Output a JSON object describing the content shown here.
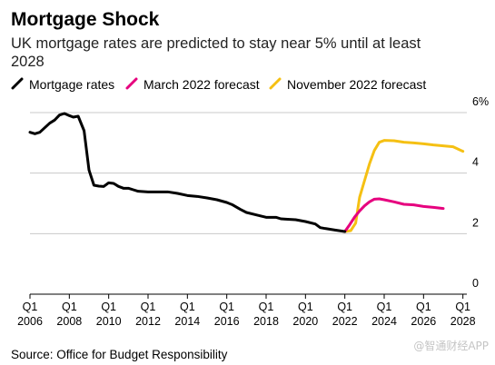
{
  "title": "Mortgage Shock",
  "subtitle_lines": [
    "UK mortgage rates are predicted to stay near 5% until at least",
    "2028"
  ],
  "source": "Source: Office for Budget Responsibility",
  "watermark": "@智通财经APP",
  "colors": {
    "mortgage": "#000000",
    "march": "#e6007e",
    "november": "#f5c013",
    "grid": "#c8c8c8"
  },
  "chart_data": {
    "type": "line",
    "x_unit": "year",
    "xlim": [
      2006,
      2028.2
    ],
    "ylim": [
      0,
      6
    ],
    "y_ticks": [
      {
        "value": 6,
        "label": "6%"
      },
      {
        "value": 4,
        "label": "4"
      },
      {
        "value": 2,
        "label": "2"
      },
      {
        "value": 0,
        "label": "0"
      }
    ],
    "x_ticks": [
      {
        "value": 2006,
        "quarter": "Q1",
        "year": "2006"
      },
      {
        "value": 2008,
        "quarter": "Q1",
        "year": "2008"
      },
      {
        "value": 2010,
        "quarter": "Q1",
        "year": "2010"
      },
      {
        "value": 2012,
        "quarter": "Q1",
        "year": "2012"
      },
      {
        "value": 2014,
        "quarter": "Q1",
        "year": "2014"
      },
      {
        "value": 2016,
        "quarter": "Q1",
        "year": "2016"
      },
      {
        "value": 2018,
        "quarter": "Q1",
        "year": "2018"
      },
      {
        "value": 2020,
        "quarter": "Q1",
        "year": "2020"
      },
      {
        "value": 2022,
        "quarter": "Q1",
        "year": "2022"
      },
      {
        "value": 2024,
        "quarter": "Q1",
        "year": "2024"
      },
      {
        "value": 2026,
        "quarter": "Q1",
        "year": "2026"
      },
      {
        "value": 2028,
        "quarter": "Q1",
        "year": "2028"
      }
    ],
    "grid": true,
    "legend_position": "top-left",
    "series": [
      {
        "name": "Mortgage rates",
        "color": "#000000",
        "points": [
          [
            2006.0,
            5.35
          ],
          [
            2006.25,
            5.3
          ],
          [
            2006.5,
            5.35
          ],
          [
            2006.75,
            5.5
          ],
          [
            2007.0,
            5.65
          ],
          [
            2007.25,
            5.75
          ],
          [
            2007.5,
            5.92
          ],
          [
            2007.75,
            5.97
          ],
          [
            2008.0,
            5.9
          ],
          [
            2008.2,
            5.85
          ],
          [
            2008.45,
            5.88
          ],
          [
            2008.75,
            5.4
          ],
          [
            2009.0,
            4.1
          ],
          [
            2009.25,
            3.6
          ],
          [
            2009.5,
            3.57
          ],
          [
            2009.75,
            3.56
          ],
          [
            2010.0,
            3.68
          ],
          [
            2010.25,
            3.66
          ],
          [
            2010.5,
            3.56
          ],
          [
            2010.75,
            3.5
          ],
          [
            2011.0,
            3.5
          ],
          [
            2011.25,
            3.45
          ],
          [
            2011.5,
            3.4
          ],
          [
            2012.0,
            3.38
          ],
          [
            2012.5,
            3.38
          ],
          [
            2013.0,
            3.38
          ],
          [
            2013.5,
            3.33
          ],
          [
            2014.0,
            3.26
          ],
          [
            2014.5,
            3.23
          ],
          [
            2015.0,
            3.18
          ],
          [
            2015.5,
            3.12
          ],
          [
            2016.0,
            3.03
          ],
          [
            2016.3,
            2.95
          ],
          [
            2016.7,
            2.8
          ],
          [
            2017.0,
            2.7
          ],
          [
            2017.5,
            2.62
          ],
          [
            2018.0,
            2.54
          ],
          [
            2018.5,
            2.54
          ],
          [
            2018.75,
            2.49
          ],
          [
            2019.0,
            2.48
          ],
          [
            2019.5,
            2.46
          ],
          [
            2020.0,
            2.4
          ],
          [
            2020.5,
            2.32
          ],
          [
            2020.75,
            2.2
          ],
          [
            2021.0,
            2.17
          ],
          [
            2021.5,
            2.12
          ],
          [
            2022.0,
            2.07
          ]
        ]
      },
      {
        "name": "March 2022 forecast",
        "color": "#e6007e",
        "points": [
          [
            2022.0,
            2.07
          ],
          [
            2022.25,
            2.3
          ],
          [
            2022.5,
            2.55
          ],
          [
            2022.75,
            2.75
          ],
          [
            2023.0,
            2.92
          ],
          [
            2023.25,
            3.05
          ],
          [
            2023.5,
            3.14
          ],
          [
            2023.75,
            3.15
          ],
          [
            2024.0,
            3.12
          ],
          [
            2024.5,
            3.05
          ],
          [
            2025.0,
            2.97
          ],
          [
            2025.5,
            2.95
          ],
          [
            2026.0,
            2.9
          ],
          [
            2026.5,
            2.87
          ],
          [
            2027.0,
            2.83
          ]
        ]
      },
      {
        "name": "November 2022 forecast",
        "color": "#f5c013",
        "points": [
          [
            2022.0,
            2.07
          ],
          [
            2022.3,
            2.1
          ],
          [
            2022.55,
            2.35
          ],
          [
            2022.75,
            3.2
          ],
          [
            2023.0,
            3.75
          ],
          [
            2023.25,
            4.3
          ],
          [
            2023.5,
            4.75
          ],
          [
            2023.75,
            5.02
          ],
          [
            2024.0,
            5.08
          ],
          [
            2024.5,
            5.07
          ],
          [
            2025.0,
            5.02
          ],
          [
            2025.5,
            5.0
          ],
          [
            2026.0,
            4.97
          ],
          [
            2026.5,
            4.93
          ],
          [
            2027.0,
            4.9
          ],
          [
            2027.5,
            4.87
          ],
          [
            2028.0,
            4.72
          ]
        ]
      }
    ]
  }
}
